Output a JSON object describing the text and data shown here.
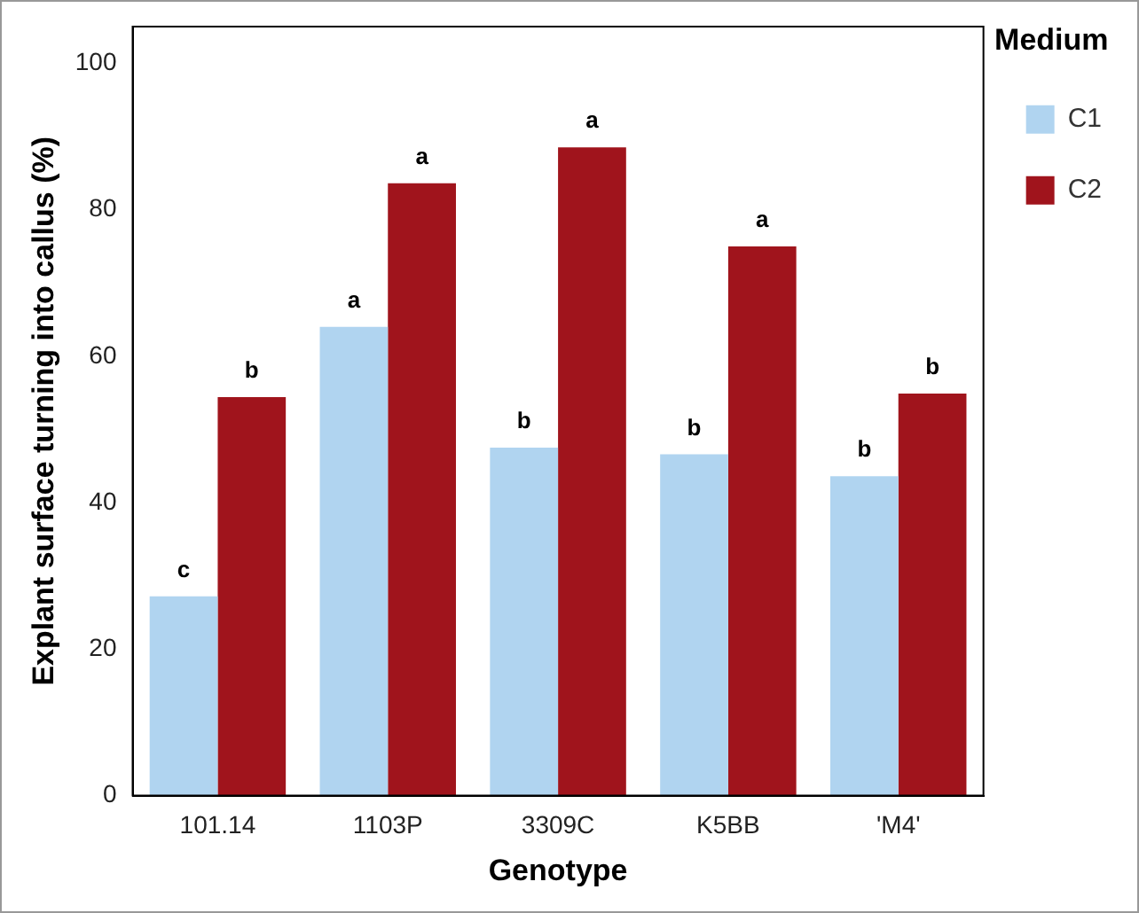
{
  "chart_data": {
    "type": "bar",
    "xlabel": "Genotype",
    "ylabel": "Explant surface turning into callus (%)",
    "legend_title": "Medium",
    "categories": [
      "101.14",
      "1103P",
      "3309C",
      "K5BB",
      "'M4'"
    ],
    "series": [
      {
        "name": "C1",
        "color": "#b0d4f0",
        "values": [
          27.2,
          64.0,
          47.5,
          46.6,
          43.6
        ]
      },
      {
        "name": "C2",
        "color": "#a0141c",
        "values": [
          54.4,
          83.6,
          88.5,
          75.0,
          54.9
        ]
      }
    ],
    "ylim": [
      0,
      105
    ],
    "yticks": [
      0,
      20,
      40,
      60,
      80,
      100
    ],
    "grid": false,
    "legend": "top right",
    "annotations": [
      {
        "text": "c",
        "x": "101.14",
        "y": 27.2
      },
      {
        "text": "b",
        "x": "101.14",
        "y": 54.4
      },
      {
        "text": "a",
        "x": "1103P",
        "y": 64.0
      },
      {
        "text": "a",
        "x": "1103P",
        "y": 83.6
      },
      {
        "text": "b",
        "x": "3309C",
        "y": 47.5
      },
      {
        "text": "a",
        "x": "3309C",
        "y": 88.5
      },
      {
        "text": "b",
        "x": "K5BB",
        "y": 46.6
      },
      {
        "text": "a",
        "x": "K5BB",
        "y": 75.0
      },
      {
        "text": "b",
        "x": "'M4'",
        "y": 43.6
      },
      {
        "text": "b",
        "x": "'M4'",
        "y": 54.9
      }
    ]
  }
}
